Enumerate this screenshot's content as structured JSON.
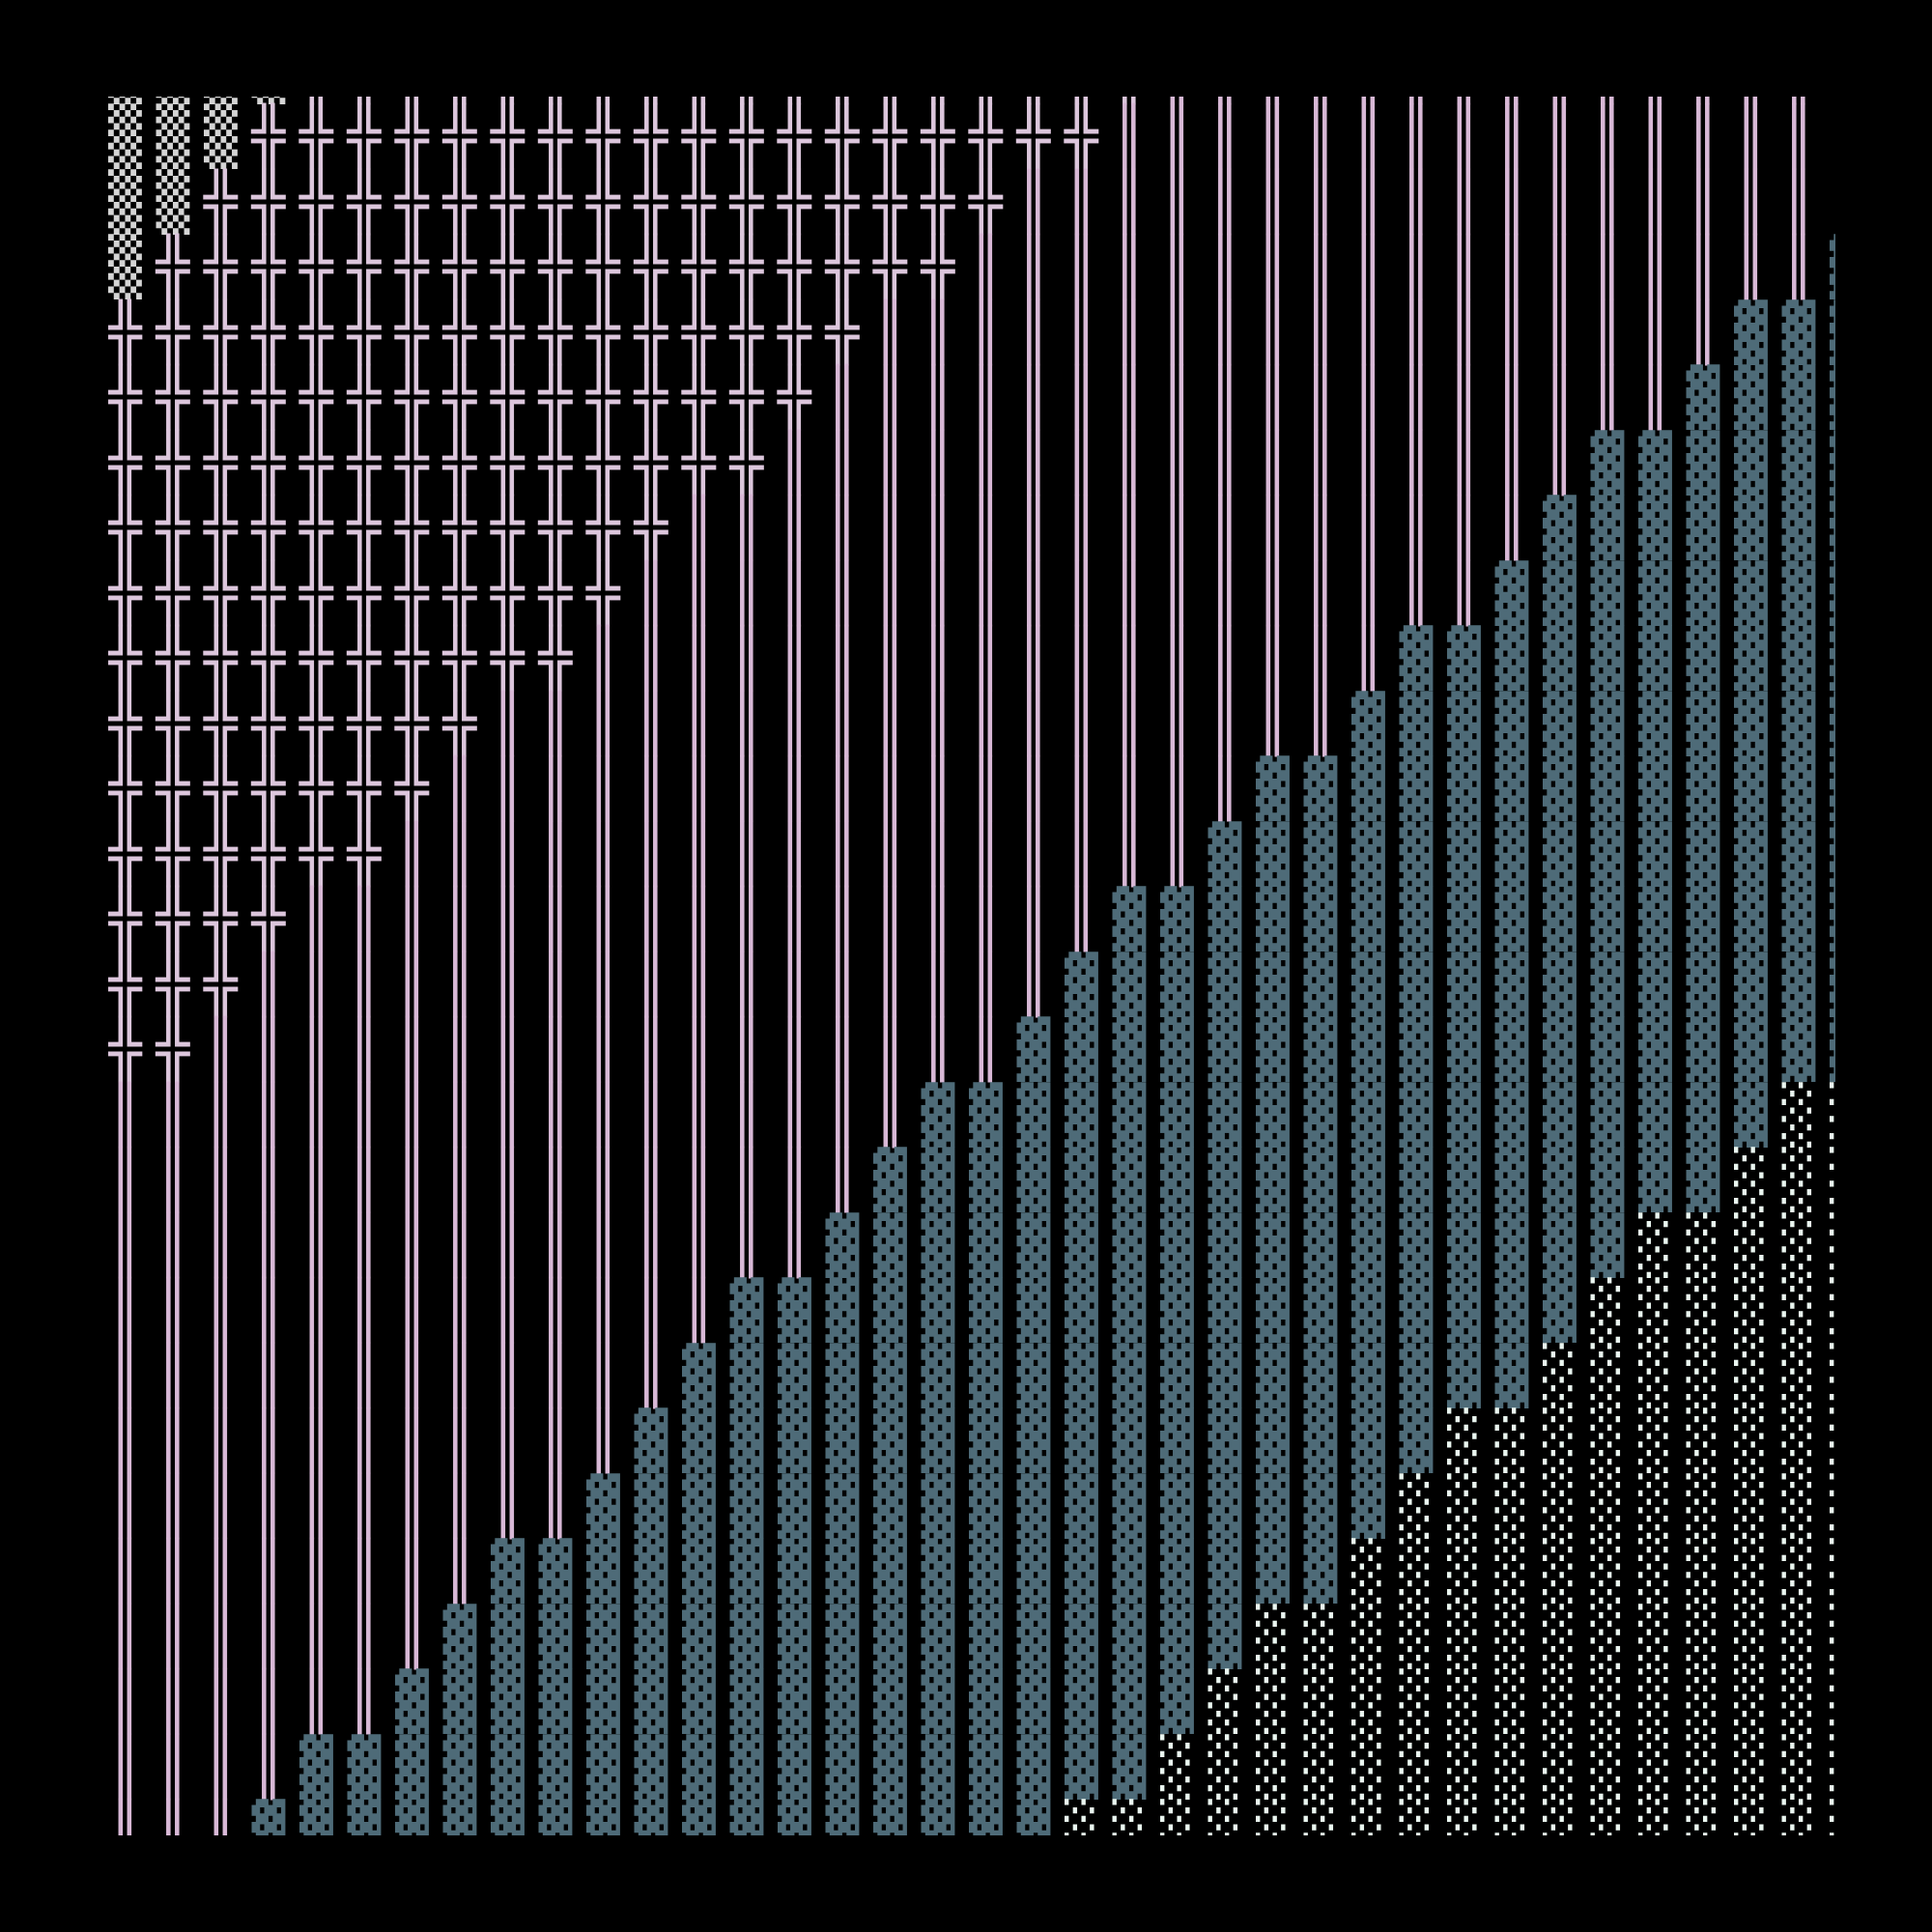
{
  "palette": {
    "background": "#000000",
    "▒": "#d4d4d4",
    "╬": "#dcc6dc",
    "║": "#d8b8d6",
    "▓": "#4e6b78",
    "░": "#eaf6f0"
  },
  "grid_rows": [
    [
      [
        "▒",
        4
      ],
      [
        "╬",
        18
      ],
      [
        "║",
        15
      ]
    ],
    [
      [
        "▒",
        3
      ],
      [
        "╬",
        18
      ],
      [
        "║",
        16
      ]
    ],
    [
      [
        "▒",
        2
      ],
      [
        "╬",
        17
      ],
      [
        "║",
        18
      ]
    ],
    [
      [
        "▒",
        1
      ],
      [
        "╬",
        17
      ],
      [
        "║",
        18
      ],
      [
        "▓",
        1
      ]
    ],
    [
      [
        "╬",
        16
      ],
      [
        "║",
        18
      ],
      [
        "▓",
        3
      ]
    ],
    [
      [
        "╬",
        15
      ],
      [
        "║",
        18
      ],
      [
        "▓",
        4
      ]
    ],
    [
      [
        "╬",
        14
      ],
      [
        "║",
        17
      ],
      [
        "▓",
        6
      ]
    ],
    [
      [
        "╬",
        12
      ],
      [
        "║",
        18
      ],
      [
        "▓",
        7
      ]
    ],
    [
      [
        "╬",
        11
      ],
      [
        "║",
        18
      ],
      [
        "▓",
        8
      ]
    ],
    [
      [
        "╬",
        10
      ],
      [
        "║",
        17
      ],
      [
        "▓",
        10
      ]
    ],
    [
      [
        "╬",
        8
      ],
      [
        "║",
        18
      ],
      [
        "▓",
        11
      ]
    ],
    [
      [
        "╬",
        7
      ],
      [
        "║",
        17
      ],
      [
        "▓",
        13
      ]
    ],
    [
      [
        "╬",
        6
      ],
      [
        "║",
        17
      ],
      [
        "▓",
        14
      ]
    ],
    [
      [
        "╬",
        4
      ],
      [
        "║",
        17
      ],
      [
        "▓",
        16
      ]
    ],
    [
      [
        "╬",
        3
      ],
      [
        "║",
        17
      ],
      [
        "▓",
        17
      ]
    ],
    [
      [
        "╬",
        2
      ],
      [
        "║",
        17
      ],
      [
        "▓",
        18
      ]
    ],
    [
      [
        "║",
        17
      ],
      [
        "▓",
        18
      ],
      [
        "░",
        2
      ]
    ],
    [
      [
        "║",
        16
      ],
      [
        "▓",
        18
      ],
      [
        "░",
        3
      ]
    ],
    [
      [
        "║",
        15
      ],
      [
        "▓",
        17
      ],
      [
        "░",
        5
      ]
    ],
    [
      [
        "║",
        13
      ],
      [
        "▓",
        18
      ],
      [
        "░",
        6
      ]
    ],
    [
      [
        "║",
        12
      ],
      [
        "▓",
        18
      ],
      [
        "░",
        7
      ]
    ],
    [
      [
        "║",
        11
      ],
      [
        "▓",
        17
      ],
      [
        "░",
        9
      ]
    ],
    [
      [
        "║",
        10
      ],
      [
        "▓",
        17
      ],
      [
        "░",
        10
      ]
    ],
    [
      [
        "║",
        8
      ],
      [
        "▓",
        18
      ],
      [
        "░",
        11
      ]
    ],
    [
      [
        "║",
        7
      ],
      [
        "▓",
        17
      ],
      [
        "░",
        13
      ]
    ],
    [
      [
        "║",
        6
      ],
      [
        "▓",
        17
      ],
      [
        "░",
        14
      ]
    ],
    [
      [
        "║",
        4
      ],
      [
        "▓",
        18
      ],
      [
        "░",
        15
      ]
    ],
    [
      [
        "║",
        3
      ],
      [
        "▓",
        17
      ],
      [
        "░",
        17
      ]
    ]
  ]
}
